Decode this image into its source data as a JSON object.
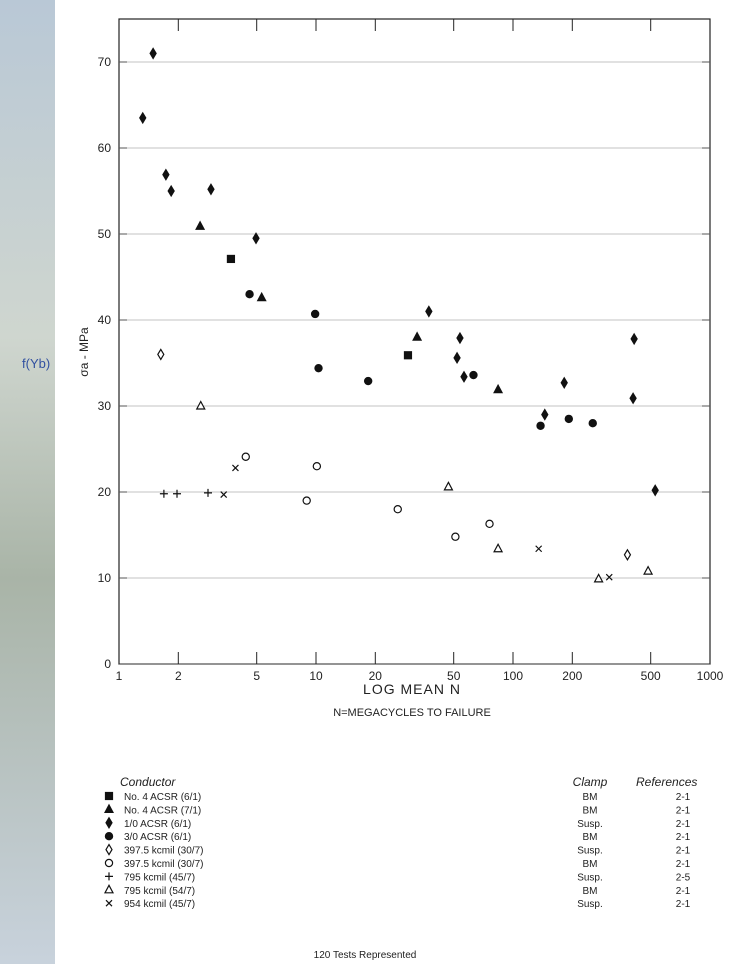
{
  "chart_data": {
    "type": "scatter",
    "annotation": "f(Yb)",
    "y_label": "σa - MPa",
    "x_label": "LOG MEAN N",
    "x_sublabel": "N=MEGACYCLES TO FAILURE",
    "log_x": true,
    "grid": true,
    "xlim": [
      1,
      1000
    ],
    "ylim": [
      0,
      75
    ],
    "xticks": [
      1,
      2,
      5,
      10,
      20,
      50,
      100,
      200,
      500,
      1000
    ],
    "yticks": [
      0,
      10,
      20,
      30,
      40,
      50,
      60,
      70
    ],
    "legend_headers": [
      "Conductor",
      "Clamp",
      "References"
    ],
    "caption": "120 Tests Represented",
    "series": [
      {
        "name": "No. 4 ACSR (6/1)",
        "marker": "square",
        "filled": true,
        "color": "#111111",
        "clamp": "BM",
        "references": "2-1",
        "x": [
          3.7,
          29.3
        ],
        "values": [
          47.1,
          35.9
        ]
      },
      {
        "name": "No. 4 ACSR (7/1)",
        "marker": "triangle",
        "filled": true,
        "color": "#111111",
        "clamp": "BM",
        "references": "2-1",
        "x": [
          2.58,
          5.3,
          32.6,
          84
        ],
        "values": [
          50.9,
          42.6,
          38.0,
          31.9
        ]
      },
      {
        "name": "1/0 ACSR (6/1)",
        "marker": "diamond",
        "filled": true,
        "color": "#111111",
        "clamp": "Susp.",
        "references": "2-1",
        "x": [
          1.49,
          1.32,
          1.73,
          1.84,
          2.93,
          4.96,
          37.4,
          53.8,
          52,
          56.4,
          145,
          182,
          412,
          407,
          527
        ],
        "values": [
          71.0,
          63.5,
          56.9,
          55.0,
          55.2,
          49.5,
          41.0,
          37.9,
          35.6,
          33.4,
          29.0,
          32.7,
          37.8,
          30.9,
          20.2
        ]
      },
      {
        "name": "3/0 ACSR (6/1)",
        "marker": "circle",
        "filled": true,
        "color": "#111111",
        "clamp": "BM",
        "references": "2-1",
        "x": [
          4.6,
          9.9,
          10.3,
          18.4,
          63,
          138,
          192,
          254
        ],
        "values": [
          43.0,
          40.7,
          34.4,
          32.9,
          33.6,
          27.7,
          28.5,
          28.0
        ]
      },
      {
        "name": "397.5 kcmil (30/7)",
        "marker": "diamond",
        "filled": false,
        "color": "#111111",
        "clamp": "Susp.",
        "references": "2-1",
        "x": [
          1.63,
          381
        ],
        "values": [
          36.0,
          12.7
        ]
      },
      {
        "name": "397.5 kcmil (30/7)",
        "marker": "circle",
        "filled": false,
        "color": "#111111",
        "clamp": "BM",
        "references": "2-1",
        "x": [
          4.4,
          10.1,
          8.97,
          26,
          51,
          76
        ],
        "values": [
          24.1,
          23.0,
          19.0,
          18.0,
          14.8,
          16.3
        ]
      },
      {
        "name": "795 kcmil (45/7)",
        "marker": "plus",
        "filled": false,
        "color": "#111111",
        "clamp": "Susp.",
        "references": "2-5",
        "x": [
          1.69,
          1.97,
          2.83
        ],
        "values": [
          19.8,
          19.8,
          19.9
        ]
      },
      {
        "name": "795 kcmil (54/7)",
        "marker": "triangle",
        "filled": false,
        "color": "#111111",
        "clamp": "BM",
        "references": "2-1",
        "x": [
          2.6,
          47,
          84,
          272,
          485
        ],
        "values": [
          30.0,
          20.6,
          13.4,
          9.9,
          10.8
        ]
      },
      {
        "name": "954 kcmil (45/7)",
        "marker": "cross",
        "filled": false,
        "color": "#111111",
        "clamp": "Susp.",
        "references": "2-1",
        "x": [
          3.9,
          3.4,
          135,
          308
        ],
        "values": [
          22.8,
          19.7,
          13.4,
          10.1
        ]
      }
    ]
  }
}
